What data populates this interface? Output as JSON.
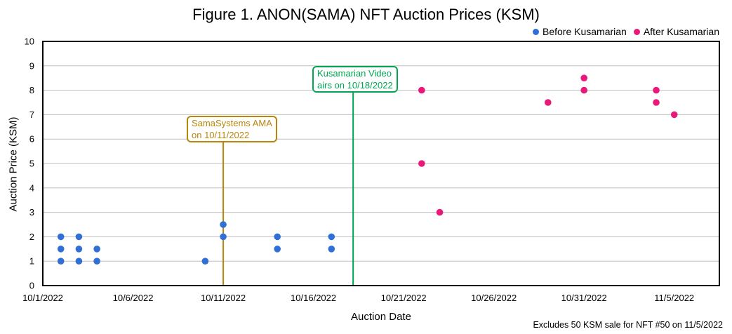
{
  "chart_data": {
    "type": "scatter",
    "title": "Figure 1. ANON(SAMA) NFT Auction Prices (KSM)",
    "xlabel": "Auction Date",
    "ylabel": "Auction Price (KSM)",
    "xlim": [
      0,
      37.5
    ],
    "ylim": [
      0,
      10
    ],
    "x_origin_date": "10/1/2022",
    "x_ticks": [
      {
        "day": 0,
        "label": "10/1/2022"
      },
      {
        "day": 5,
        "label": "10/6/2022"
      },
      {
        "day": 10,
        "label": "10/11/2022"
      },
      {
        "day": 15,
        "label": "10/16/2022"
      },
      {
        "day": 20,
        "label": "10/21/2022"
      },
      {
        "day": 25,
        "label": "10/26/2022"
      },
      {
        "day": 30,
        "label": "10/31/2022"
      },
      {
        "day": 35,
        "label": "11/5/2022"
      }
    ],
    "y_ticks": [
      0,
      1,
      2,
      3,
      4,
      5,
      6,
      7,
      8,
      9,
      10
    ],
    "grid": "horizontal",
    "legend_position": "top-right",
    "series": [
      {
        "name": "Before Kusamarian",
        "color": "#2f6fd6",
        "points": [
          {
            "x": 1,
            "y": 2
          },
          {
            "x": 1,
            "y": 1.5
          },
          {
            "x": 1,
            "y": 1
          },
          {
            "x": 2,
            "y": 2
          },
          {
            "x": 2,
            "y": 1.5
          },
          {
            "x": 2,
            "y": 1
          },
          {
            "x": 3,
            "y": 1.5
          },
          {
            "x": 3,
            "y": 1
          },
          {
            "x": 9,
            "y": 1
          },
          {
            "x": 10,
            "y": 2.5
          },
          {
            "x": 10,
            "y": 2
          },
          {
            "x": 13,
            "y": 2
          },
          {
            "x": 13,
            "y": 1.5
          },
          {
            "x": 16,
            "y": 2
          },
          {
            "x": 16,
            "y": 1.5
          }
        ]
      },
      {
        "name": "After Kusamarian",
        "color": "#e8197a",
        "points": [
          {
            "x": 21,
            "y": 8
          },
          {
            "x": 21,
            "y": 5
          },
          {
            "x": 22,
            "y": 3
          },
          {
            "x": 28,
            "y": 7.5
          },
          {
            "x": 30,
            "y": 8.5
          },
          {
            "x": 30,
            "y": 8
          },
          {
            "x": 34,
            "y": 8
          },
          {
            "x": 34,
            "y": 7.5
          },
          {
            "x": 35,
            "y": 7
          }
        ]
      }
    ],
    "vertical_lines": [
      {
        "x": 10,
        "color": "#b8860b",
        "label": "SamaSystems AMA\non 10/11/2022",
        "label_y": 6.3
      },
      {
        "x": 17.2,
        "color": "#00a651",
        "label": "Kusamarian Video\nairs on 10/18/2022",
        "label_y": 8.3
      }
    ],
    "footnote": "Excludes 50 KSM sale for NFT #50 on 11/5/2022"
  }
}
